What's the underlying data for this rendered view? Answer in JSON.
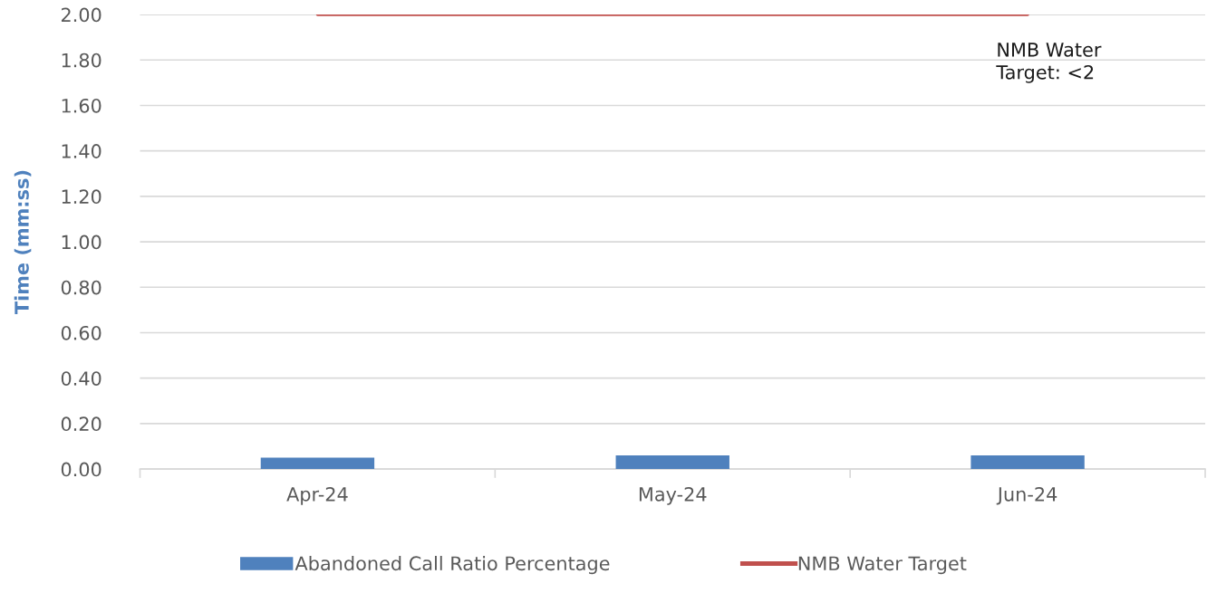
{
  "chart_data": {
    "type": "bar",
    "categories": [
      "Apr-24",
      "May-24",
      "Jun-24"
    ],
    "ylabel": "Time (mm:ss)",
    "series": [
      {
        "name": "Abandoned Call Ratio Percentage",
        "color": "#4f81bd",
        "values": [
          0.05,
          0.06,
          0.06
        ]
      },
      {
        "name": "NMB Water Target",
        "type": "line",
        "color": "#c0504d",
        "values": [
          2,
          2,
          2
        ]
      }
    ],
    "ylim": [
      0,
      2
    ],
    "yticks": [
      {
        "value": 0,
        "label": "0.00"
      },
      {
        "value": 0.2,
        "label": "0.20"
      },
      {
        "value": 0.4,
        "label": "0.40"
      },
      {
        "value": 0.6,
        "label": "0.60"
      },
      {
        "value": 0.8,
        "label": "0.80"
      },
      {
        "value": 1,
        "label": "1.00"
      },
      {
        "value": 1.2,
        "label": "1.20"
      },
      {
        "value": 1.4,
        "label": "1.40"
      },
      {
        "value": 1.6,
        "label": "1.60"
      },
      {
        "value": 1.8,
        "label": "1.80"
      },
      {
        "value": 2,
        "label": "2.00"
      }
    ],
    "grid": "y",
    "legend": "bottom",
    "annotations": [
      {
        "text": "NMB Water\nTarget: <2",
        "x": "Jun-24",
        "y": 2
      }
    ]
  }
}
